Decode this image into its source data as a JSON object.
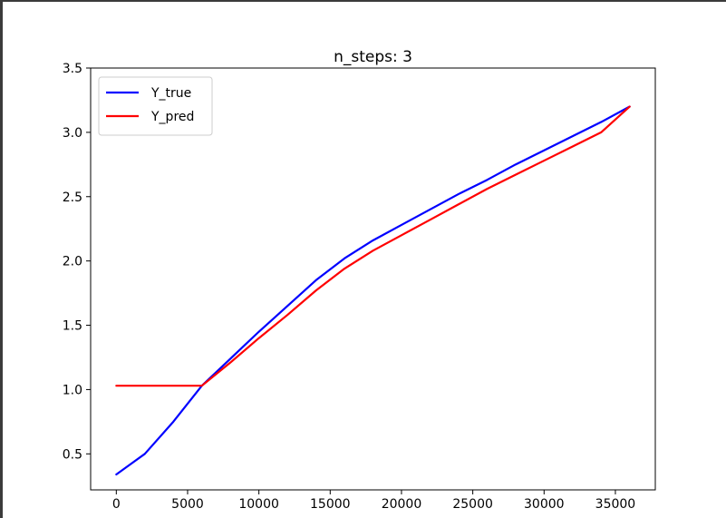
{
  "chart_data": {
    "type": "line",
    "title": "n_steps: 3",
    "xlabel": "",
    "ylabel": "",
    "xlim": [
      -1800,
      37800
    ],
    "ylim": [
      0.22,
      3.5
    ],
    "xticks": [
      0,
      5000,
      10000,
      15000,
      20000,
      25000,
      30000,
      35000
    ],
    "xtick_labels": [
      "0",
      "5000",
      "10000",
      "15000",
      "20000",
      "25000",
      "30000",
      "35000"
    ],
    "yticks": [
      0.5,
      1.0,
      1.5,
      2.0,
      2.5,
      3.0,
      3.5
    ],
    "ytick_labels": [
      "0.5",
      "1.0",
      "1.5",
      "2.0",
      "2.5",
      "3.0",
      "3.5"
    ],
    "grid": false,
    "legend_position": "top-left",
    "series": [
      {
        "name": "Y_true",
        "color": "#0000ff",
        "x": [
          0,
          2000,
          4000,
          6000,
          8000,
          10000,
          12000,
          14000,
          16000,
          18000,
          20000,
          22000,
          24000,
          26000,
          28000,
          30000,
          32000,
          34000,
          36000
        ],
        "values": [
          0.34,
          0.5,
          0.75,
          1.03,
          1.24,
          1.45,
          1.65,
          1.85,
          2.02,
          2.16,
          2.28,
          2.4,
          2.52,
          2.63,
          2.75,
          2.86,
          2.97,
          3.08,
          3.2
        ]
      },
      {
        "name": "Y_pred",
        "color": "#ff0000",
        "x": [
          0,
          2000,
          4000,
          6000,
          8000,
          10000,
          12000,
          14000,
          16000,
          18000,
          20000,
          22000,
          24000,
          26000,
          28000,
          30000,
          32000,
          34000,
          36000
        ],
        "values": [
          1.03,
          1.03,
          1.03,
          1.03,
          1.21,
          1.4,
          1.58,
          1.77,
          1.94,
          2.08,
          2.2,
          2.32,
          2.44,
          2.56,
          2.67,
          2.78,
          2.89,
          3.0,
          3.2
        ]
      }
    ]
  }
}
